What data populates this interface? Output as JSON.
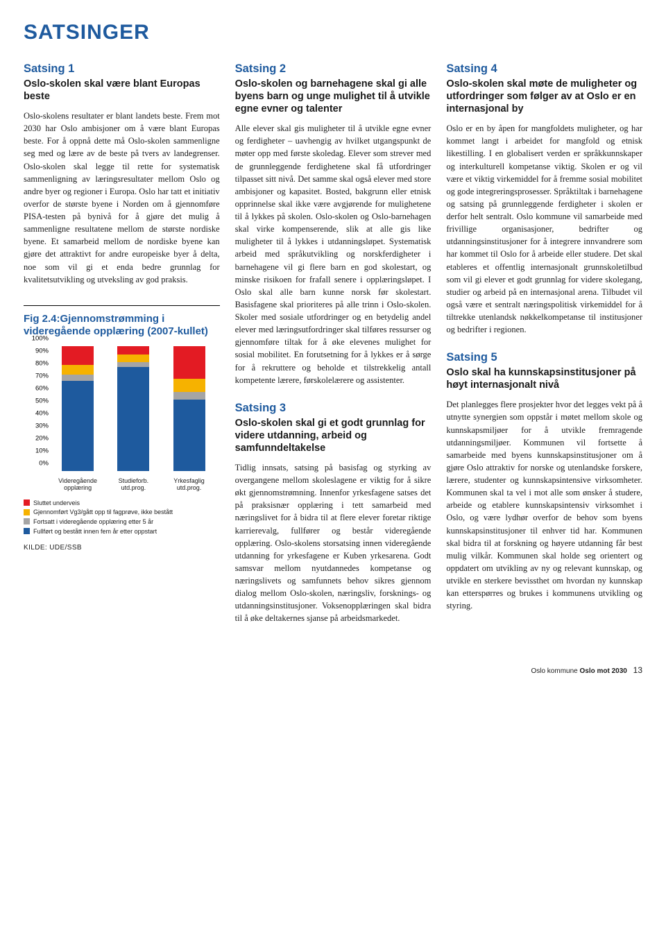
{
  "page_title": "SATSINGER",
  "col1": {
    "s1_head": "Satsing 1",
    "s1_sub": "Oslo-skolen skal være blant Europas beste",
    "s1_body": "Oslo-skolens resultater er blant landets beste. Frem mot 2030 har Oslo ambisjoner om å være blant Europas beste. For å oppnå dette må Oslo-skolen sammenligne seg med og lære av de beste på tvers av landegrenser. Oslo-skolen skal legge til rette for systematisk sammenligning av læringsresultater mellom Oslo og andre byer og regioner i Europa. Oslo har tatt et initiativ overfor de største byene i Norden om å gjennomføre PISA-testen på bynivå for å gjøre det mulig å sammenligne resultatene mellom de største nordiske byene. Et samarbeid mellom de nordiske byene kan gjøre det attraktivt for andre europeiske byer å delta, noe som vil gi et enda bedre grunnlag for kvalitetsutvikling og utveksling av god praksis.",
    "fig_title": "Fig 2.4:Gjennomstrømming i videregående opplæring (2007-kullet)",
    "chart": {
      "type": "stacked-bar",
      "y_ticks": [
        "0%",
        "10%",
        "20%",
        "30%",
        "40%",
        "50%",
        "60%",
        "70%",
        "80%",
        "90%",
        "100%"
      ],
      "categories": [
        {
          "label_l1": "Videregående",
          "label_l2": "opplæring"
        },
        {
          "label_l1": "Studieforb.",
          "label_l2": "utd.prog."
        },
        {
          "label_l1": "Yrkesfaglig",
          "label_l2": "utd.prog."
        }
      ],
      "series_colors": {
        "sluttet": "#e31b23",
        "gjennomfort": "#f6b200",
        "fortsatt": "#a5a5a5",
        "fullfort": "#1e5a9e"
      },
      "data": [
        {
          "fullfort": 72,
          "fortsatt": 5,
          "gjennomfort": 8,
          "sluttet": 15
        },
        {
          "fullfort": 83,
          "fortsatt": 4,
          "gjennomfort": 6,
          "sluttet": 7
        },
        {
          "fullfort": 57,
          "fortsatt": 6,
          "gjennomfort": 11,
          "sluttet": 26
        }
      ],
      "legend": [
        {
          "color": "#e31b23",
          "label": "Sluttet underveis"
        },
        {
          "color": "#f6b200",
          "label": "Gjennomført Vg3/gått opp til fagprøve, ikke bestått"
        },
        {
          "color": "#a5a5a5",
          "label": "Fortsatt i videregående opplæring etter 5 år"
        },
        {
          "color": "#1e5a9e",
          "label": "Fullført og bestått innen fem år etter oppstart"
        }
      ],
      "kilde": "KILDE: UDE/SSB"
    }
  },
  "col2": {
    "s2_head": "Satsing 2",
    "s2_sub": "Oslo-skolen og barnehagene skal gi alle byens barn og unge mulighet til å utvikle egne evner og talenter",
    "s2_body": "Alle elever skal gis muligheter til å utvikle egne evner og ferdigheter – uavhengig av hvilket utgangspunkt de møter opp med første skoledag. Elever som strever med de grunnleggende ferdighetene skal få utfordringer tilpasset sitt nivå. Det samme skal også elever med store ambisjoner og kapasitet. Bosted, bakgrunn eller etnisk opprinnelse skal ikke være avgjørende for mulighetene til å lykkes på skolen. Oslo-skolen og Oslo-barnehagen skal virke kompenserende, slik at alle gis like muligheter til å lykkes i utdanningsløpet. Systematisk arbeid med språkutvikling og norskferdigheter i barnehagene vil gi flere barn en god skolestart, og minske risikoen for frafall senere i opplæringsløpet. I Oslo skal alle barn kunne norsk før skolestart. Basisfagene skal prioriteres på alle trinn i Oslo-skolen. Skoler med sosiale utfordringer og en betydelig andel elever med læringsutfordringer skal tilføres ressurser og gjennomføre tiltak for å øke elevenes mulighet for sosial mobilitet. En forutsetning for å lykkes er å sørge for å rekruttere og beholde et tilstrekkelig antall kompetente lærere, førskolelærere og assistenter.",
    "s3_head": "Satsing 3",
    "s3_sub": "Oslo-skolen skal gi et godt grunnlag for videre utdanning, arbeid og samfunndeltakelse",
    "s3_body": "Tidlig innsats, satsing på basisfag og styrking av overgangene mellom skoleslagene er viktig for å sikre økt gjennomstrømning. Innenfor yrkesfagene satses det på praksisnær opplæring i tett samarbeid med næringslivet for å bidra til at flere elever foretar riktige karrierevalg, fullfører og består videregående opplæring. Oslo-skolens storsatsing innen videregående utdanning for yrkesfagene er Kuben yrkesarena. Godt samsvar mellom nyutdannedes kompetanse og næringslivets og samfunnets behov sikres gjennom dialog mellom Oslo-skolen, næringsliv, forsknings- og utdanningsinstitusjoner. Voksenopplæringen skal bidra til å øke deltakernes sjanse på arbeidsmarkedet."
  },
  "col3": {
    "s4_head": "Satsing 4",
    "s4_sub": "Oslo-skolen skal møte de muligheter og utfordringer som følger av at Oslo er en internasjonal by",
    "s4_body": "Oslo er en by åpen for mangfoldets muligheter, og har kommet langt i arbeidet for mangfold og etnisk likestilling. I en globalisert verden er språkkunnskaper og interkulturell kompetanse viktig. Skolen er og vil være et viktig virkemiddel for å fremme sosial mobilitet og gode integreringsprosesser. Språktiltak i barnehagene og satsing på grunnleggende ferdigheter i skolen er derfor helt sentralt. Oslo kommune vil samarbeide med frivillige organisasjoner, bedrifter og utdanningsinstitusjoner for å integrere innvandrere som har kommet til Oslo for å arbeide eller studere. Det skal etableres et offentlig internasjonalt grunnskoletilbud som vil gi elever et godt grunnlag for videre skolegang, studier og arbeid på en internasjonal arena. Tilbudet vil også være et sentralt næringspolitisk virkemiddel for å tiltrekke utenlandsk nøkkelkompetanse til institusjoner og bedrifter i regionen.",
    "s5_head": "Satsing 5",
    "s5_sub": "Oslo skal ha kunnskapsinstitusjoner på høyt internasjonalt nivå",
    "s5_body": "Det planlegges flere prosjekter hvor det legges vekt på å utnytte synergien som oppstår i møtet mellom skole og kunnskapsmiljøer for å utvikle fremragende utdanningsmiljøer. Kommunen vil fortsette å samarbeide med byens kunnskapsinstitusjoner om å gjøre Oslo attraktiv for norske og utenlandske forskere, lærere, studenter og kunnskapsintensive virksomheter. Kommunen skal ta vel i mot alle som ønsker å studere, arbeide og etablere kunnskapsintensiv virksomhet i Oslo, og være lydhør overfor de behov som byens kunnskapsinstitusjoner til enhver tid har. Kommunen skal bidra til at forskning og høyere utdanning får best mulig vilkår. Kommunen skal holde seg orientert og oppdatert om utvikling av ny og relevant kunnskap, og utvikle en sterkere bevissthet om hvordan ny kunnskap kan etterspørres og brukes i kommunens utvikling og styring."
  },
  "footer": {
    "left": "Oslo kommune",
    "mid": "Oslo mot 2030",
    "page": "13"
  }
}
